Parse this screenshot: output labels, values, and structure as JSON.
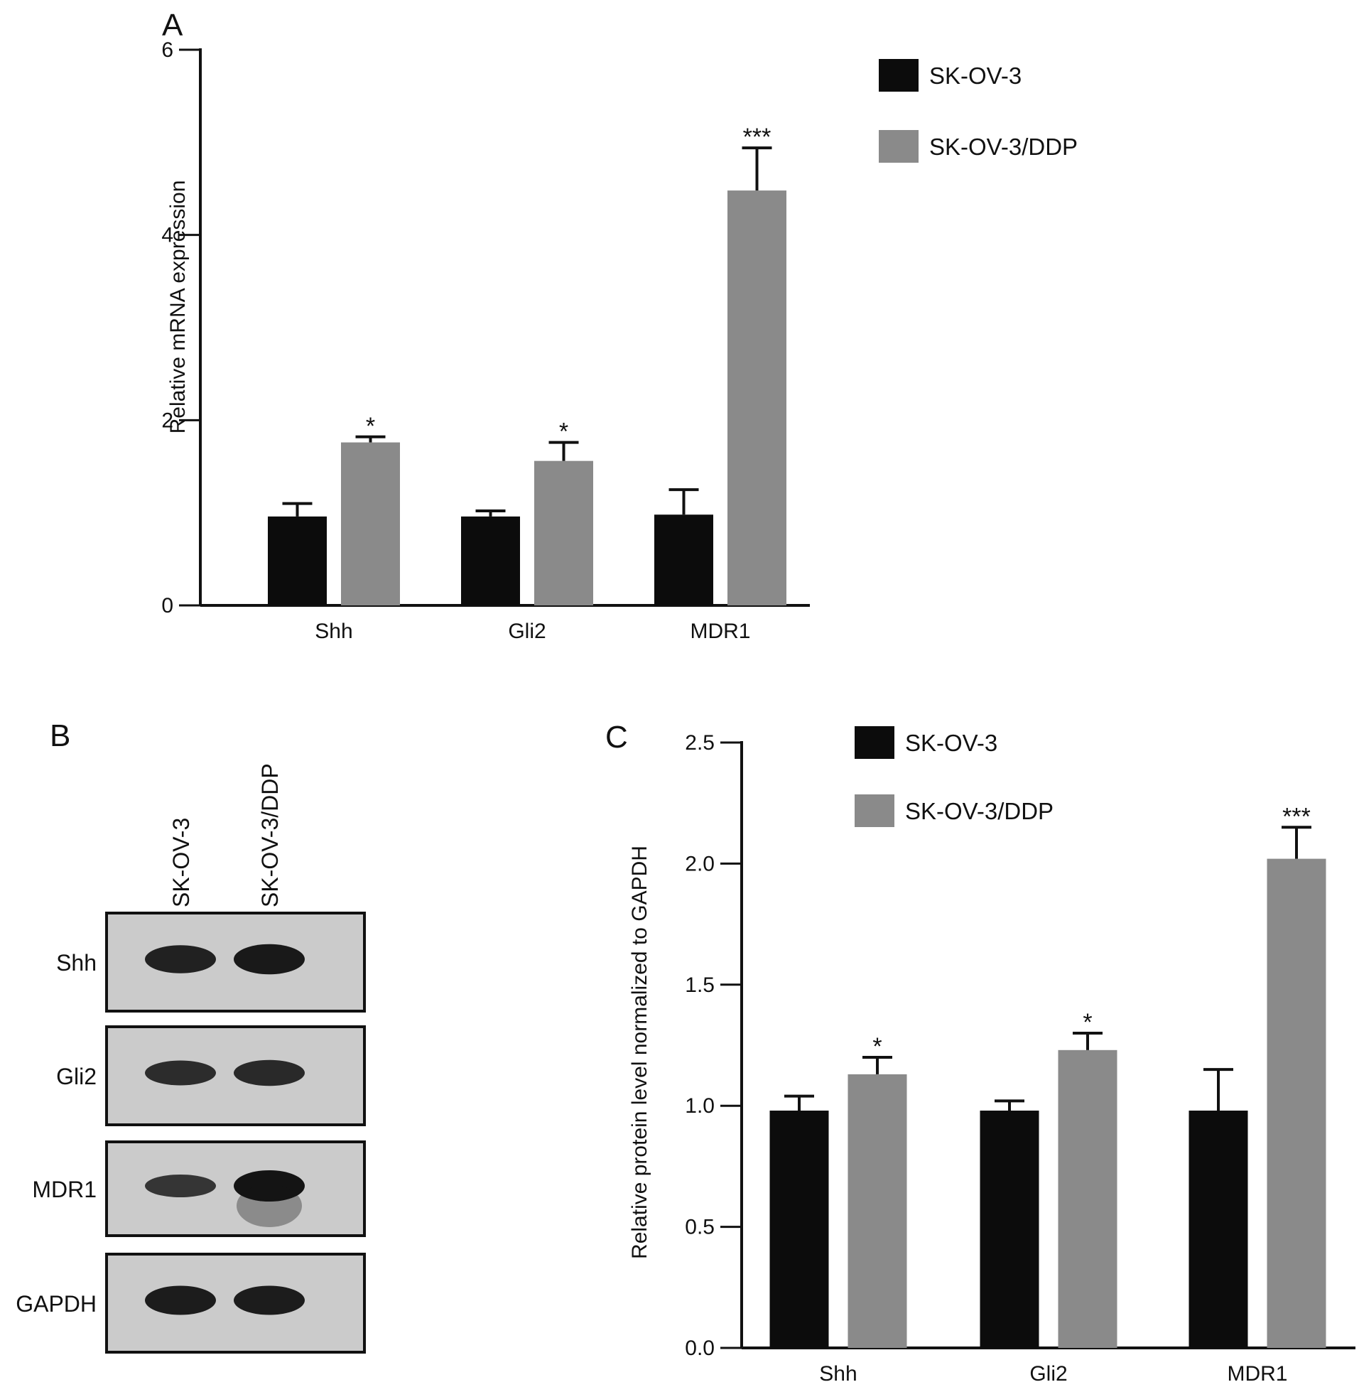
{
  "colors": {
    "series1": "#0c0c0c",
    "series2": "#8a8a8a",
    "axis": "#111111",
    "band": "#141414",
    "blot_bg": "#cbcbcb"
  },
  "panels": [
    {
      "id": "A",
      "letter": "A"
    },
    {
      "id": "B",
      "letter": "B"
    },
    {
      "id": "C",
      "letter": "C"
    }
  ],
  "chart_data": [
    {
      "panel": "A",
      "type": "bar",
      "title": "",
      "xlabel": "",
      "ylabel": "Relative mRNA expression",
      "ylim": [
        0,
        6
      ],
      "yticks": [
        "0",
        "2",
        "4",
        "6"
      ],
      "grid": false,
      "legend_position": "top-right",
      "categories": [
        "Shh",
        "Gli2",
        "MDR1"
      ],
      "series": [
        {
          "name": "SK-OV-3",
          "values": [
            0.96,
            0.96,
            0.98
          ],
          "errors": [
            0.14,
            0.06,
            0.27
          ]
        },
        {
          "name": "SK-OV-3/DDP",
          "values": [
            1.76,
            1.56,
            4.48
          ],
          "errors": [
            0.06,
            0.2,
            0.46
          ]
        }
      ],
      "annotations": [
        {
          "category": "Shh",
          "series": "SK-OV-3/DDP",
          "text": "*"
        },
        {
          "category": "Gli2",
          "series": "SK-OV-3/DDP",
          "text": "*"
        },
        {
          "category": "MDR1",
          "series": "SK-OV-3/DDP",
          "text": "***"
        }
      ]
    },
    {
      "panel": "C",
      "type": "bar",
      "title": "",
      "xlabel": "",
      "ylabel": "Relative protein level normalized to GAPDH",
      "ylim": [
        0,
        2.5
      ],
      "yticks": [
        "0.0",
        "0.5",
        "1.0",
        "1.5",
        "2.0",
        "2.5"
      ],
      "grid": false,
      "legend_position": "top-left",
      "categories": [
        "Shh",
        "Gli2",
        "MDR1"
      ],
      "series": [
        {
          "name": "SK-OV-3",
          "values": [
            0.98,
            0.98,
            0.98
          ],
          "errors": [
            0.06,
            0.04,
            0.17
          ]
        },
        {
          "name": "SK-OV-3/DDP",
          "values": [
            1.13,
            1.23,
            2.02
          ],
          "errors": [
            0.07,
            0.07,
            0.13
          ]
        }
      ],
      "annotations": [
        {
          "category": "Shh",
          "series": "SK-OV-3/DDP",
          "text": "*"
        },
        {
          "category": "Gli2",
          "series": "SK-OV-3/DDP",
          "text": "*"
        },
        {
          "category": "MDR1",
          "series": "SK-OV-3/DDP",
          "text": "***"
        }
      ]
    }
  ],
  "western_blot": {
    "lanes": [
      "SK-OV-3",
      "SK-OV-3/DDP"
    ],
    "rows": [
      {
        "label": "Shh",
        "intensity": [
          0.85,
          0.95
        ]
      },
      {
        "label": "Gli2",
        "intensity": [
          0.7,
          0.75
        ]
      },
      {
        "label": "MDR1",
        "intensity": [
          0.6,
          1.0
        ]
      },
      {
        "label": "GAPDH",
        "intensity": [
          0.9,
          0.9
        ]
      }
    ]
  }
}
